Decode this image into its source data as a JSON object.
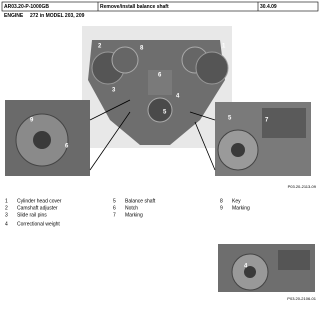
{
  "header": {
    "code": "AR03.20-P-1000GB",
    "title": "Remove/install balance shaft",
    "date": "30.4.09",
    "engine_label": "ENGINE",
    "engine_text": "272 in MODEL 203, 209"
  },
  "figures": [
    {
      "callouts": [
        "2",
        "8",
        "1",
        "3",
        "6",
        "5",
        "4",
        "9",
        "6",
        "5",
        "7"
      ],
      "code": "P03.20-2113-09"
    },
    {
      "callouts": [
        "4"
      ],
      "code": "P03.20-2106-01"
    }
  ],
  "legend": [
    {
      "number": "1",
      "text": "Cylinder head cover"
    },
    {
      "number": "2",
      "text": "Camshaft adjuster"
    },
    {
      "number": "3",
      "text": "Slide rail pins"
    },
    {
      "number": "4",
      "text": "Correctional weight"
    },
    {
      "number": "5",
      "text": "Balance shaft"
    },
    {
      "number": "6",
      "text": "Notch"
    },
    {
      "number": "7",
      "text": "Marking"
    },
    {
      "number": "8",
      "text": "Key"
    },
    {
      "number": "9",
      "text": "Marking"
    }
  ]
}
